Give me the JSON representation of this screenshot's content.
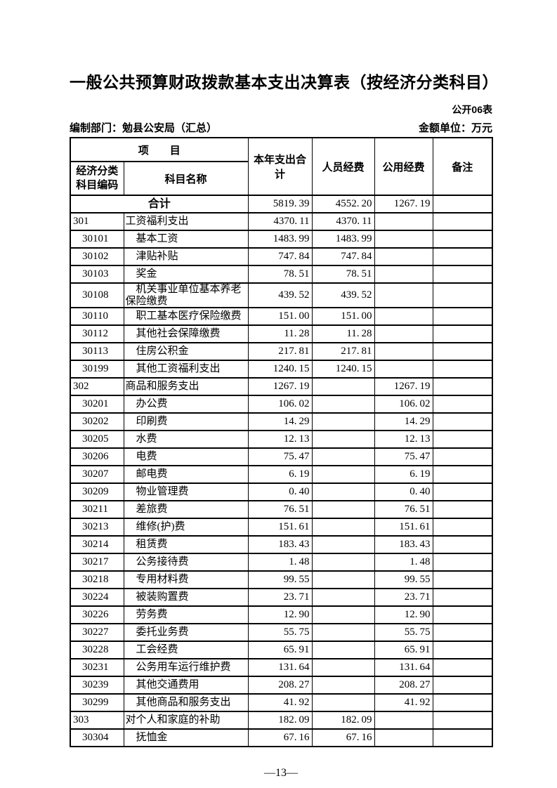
{
  "page": {
    "title": "一般公共预算财政拨款基本支出决算表（按经济分类科目）",
    "table_code": "公开06表",
    "prepared_by_label": "编制部门：勉县公安局（汇总）",
    "unit_label": "金额单位：万元",
    "page_number": "—13—"
  },
  "table": {
    "header": {
      "group_title": "项　　目",
      "col_code": "经济分类\n科目编码",
      "col_name": "科目名称",
      "col_total": "本年支出合计",
      "col_personnel": "人员经费",
      "col_public": "公用经费",
      "col_note": "备注"
    },
    "rows": [
      {
        "level": "total",
        "name": "合计",
        "total": "5819.39",
        "personnel": "4552.20",
        "public": "1267.19",
        "note": ""
      },
      {
        "level": 1,
        "code": "301",
        "name": "工资福利支出",
        "total": "4370.11",
        "personnel": "4370.11",
        "public": "",
        "note": ""
      },
      {
        "level": 2,
        "code": "30101",
        "name": "基本工资",
        "total": "1483.99",
        "personnel": "1483.99",
        "public": "",
        "note": ""
      },
      {
        "level": 2,
        "code": "30102",
        "name": "津贴补贴",
        "total": "747.84",
        "personnel": "747.84",
        "public": "",
        "note": ""
      },
      {
        "level": 2,
        "code": "30103",
        "name": "奖金",
        "total": "78.51",
        "personnel": "78.51",
        "public": "",
        "note": ""
      },
      {
        "level": 2,
        "code": "30108",
        "name": "机关事业单位基本养老保险缴费",
        "total": "439.52",
        "personnel": "439.52",
        "public": "",
        "note": ""
      },
      {
        "level": 2,
        "code": "30110",
        "name": "职工基本医疗保险缴费",
        "total": "151.00",
        "personnel": "151.00",
        "public": "",
        "note": ""
      },
      {
        "level": 2,
        "code": "30112",
        "name": "其他社会保障缴费",
        "total": "11.28",
        "personnel": "11.28",
        "public": "",
        "note": ""
      },
      {
        "level": 2,
        "code": "30113",
        "name": "住房公积金",
        "total": "217.81",
        "personnel": "217.81",
        "public": "",
        "note": ""
      },
      {
        "level": 2,
        "code": "30199",
        "name": "其他工资福利支出",
        "total": "1240.15",
        "personnel": "1240.15",
        "public": "",
        "note": ""
      },
      {
        "level": 1,
        "code": "302",
        "name": "商品和服务支出",
        "total": "1267.19",
        "personnel": "",
        "public": "1267.19",
        "note": ""
      },
      {
        "level": 2,
        "code": "30201",
        "name": "办公费",
        "total": "106.02",
        "personnel": "",
        "public": "106.02",
        "note": ""
      },
      {
        "level": 2,
        "code": "30202",
        "name": "印刷费",
        "total": "14.29",
        "personnel": "",
        "public": "14.29",
        "note": ""
      },
      {
        "level": 2,
        "code": "30205",
        "name": "水费",
        "total": "12.13",
        "personnel": "",
        "public": "12.13",
        "note": ""
      },
      {
        "level": 2,
        "code": "30206",
        "name": "电费",
        "total": "75.47",
        "personnel": "",
        "public": "75.47",
        "note": ""
      },
      {
        "level": 2,
        "code": "30207",
        "name": "邮电费",
        "total": "6.19",
        "personnel": "",
        "public": "6.19",
        "note": ""
      },
      {
        "level": 2,
        "code": "30209",
        "name": "物业管理费",
        "total": "0.40",
        "personnel": "",
        "public": "0.40",
        "note": ""
      },
      {
        "level": 2,
        "code": "30211",
        "name": "差旅费",
        "total": "76.51",
        "personnel": "",
        "public": "76.51",
        "note": ""
      },
      {
        "level": 2,
        "code": "30213",
        "name": "维修(护)费",
        "total": "151.61",
        "personnel": "",
        "public": "151.61",
        "note": ""
      },
      {
        "level": 2,
        "code": "30214",
        "name": "租赁费",
        "total": "183.43",
        "personnel": "",
        "public": "183.43",
        "note": ""
      },
      {
        "level": 2,
        "code": "30217",
        "name": "公务接待费",
        "total": "1.48",
        "personnel": "",
        "public": "1.48",
        "note": ""
      },
      {
        "level": 2,
        "code": "30218",
        "name": "专用材料费",
        "total": "99.55",
        "personnel": "",
        "public": "99.55",
        "note": ""
      },
      {
        "level": 2,
        "code": "30224",
        "name": "被装购置费",
        "total": "23.71",
        "personnel": "",
        "public": "23.71",
        "note": ""
      },
      {
        "level": 2,
        "code": "30226",
        "name": "劳务费",
        "total": "12.90",
        "personnel": "",
        "public": "12.90",
        "note": ""
      },
      {
        "level": 2,
        "code": "30227",
        "name": "委托业务费",
        "total": "55.75",
        "personnel": "",
        "public": "55.75",
        "note": ""
      },
      {
        "level": 2,
        "code": "30228",
        "name": "工会经费",
        "total": "65.91",
        "personnel": "",
        "public": "65.91",
        "note": ""
      },
      {
        "level": 2,
        "code": "30231",
        "name": "公务用车运行维护费",
        "total": "131.64",
        "personnel": "",
        "public": "131.64",
        "note": ""
      },
      {
        "level": 2,
        "code": "30239",
        "name": "其他交通费用",
        "total": "208.27",
        "personnel": "",
        "public": "208.27",
        "note": ""
      },
      {
        "level": 2,
        "code": "30299",
        "name": "其他商品和服务支出",
        "total": "41.92",
        "personnel": "",
        "public": "41.92",
        "note": ""
      },
      {
        "level": 1,
        "code": "303",
        "name": "对个人和家庭的补助",
        "total": "182.09",
        "personnel": "182.09",
        "public": "",
        "note": ""
      },
      {
        "level": 2,
        "code": "30304",
        "name": "抚恤金",
        "total": "67.16",
        "personnel": "67.16",
        "public": "",
        "note": ""
      }
    ]
  }
}
